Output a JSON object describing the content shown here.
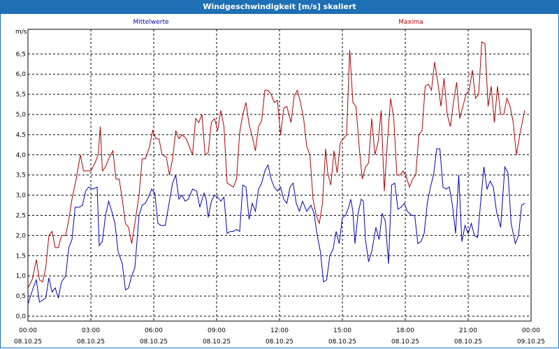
{
  "window": {
    "title": "Windgeschwindigkeit [m/s] skaliert"
  },
  "colors": {
    "mean": "#0000bb",
    "max": "#b00000",
    "titlebar": "#1e6fb4"
  },
  "chart_data": {
    "type": "line",
    "title": "Windgeschwindigkeit [m/s] skaliert",
    "ylabel": "m/s",
    "ylim": [
      0,
      7
    ],
    "yticks": [
      "0,0",
      "0,5",
      "1,0",
      "1,5",
      "2,0",
      "2,5",
      "3,0",
      "3,5",
      "4,0",
      "4,5",
      "5,0",
      "5,5",
      "6,0",
      "6,5"
    ],
    "xlim_hours": [
      0,
      24
    ],
    "xticks": [
      {
        "time": "00:00",
        "date": "08.10.25"
      },
      {
        "time": "03:00",
        "date": "08.10.25"
      },
      {
        "time": "06:00",
        "date": "08.10.25"
      },
      {
        "time": "09:00",
        "date": "08.10.25"
      },
      {
        "time": "12:00",
        "date": "08.10.25"
      },
      {
        "time": "15:00",
        "date": "08.10.25"
      },
      {
        "time": "18:00",
        "date": "08.10.25"
      },
      {
        "time": "21:00",
        "date": "08.10.25"
      },
      {
        "time": "00:00",
        "date": "09.10.25"
      }
    ],
    "series": [
      {
        "name": "Mittelwerte",
        "points": [
          [
            0,
            0.3
          ],
          [
            0.25,
            0.7
          ],
          [
            0.4,
            0.9
          ],
          [
            0.55,
            0.35
          ],
          [
            0.85,
            0.45
          ],
          [
            1,
            0.95
          ],
          [
            1.15,
            0.6
          ],
          [
            1.3,
            0.7
          ],
          [
            1.45,
            0.45
          ],
          [
            1.6,
            0.85
          ],
          [
            1.8,
            1.0
          ],
          [
            1.95,
            1.7
          ],
          [
            2.1,
            1.9
          ],
          [
            2.25,
            2.7
          ],
          [
            2.45,
            2.7
          ],
          [
            2.6,
            2.75
          ],
          [
            2.75,
            3.1
          ],
          [
            2.9,
            3.2
          ],
          [
            3.1,
            3.15
          ],
          [
            3.3,
            3.2
          ],
          [
            3.4,
            1.75
          ],
          [
            3.55,
            1.85
          ],
          [
            3.7,
            2.5
          ],
          [
            3.85,
            2.85
          ],
          [
            4.0,
            2.6
          ],
          [
            4.15,
            2.3
          ],
          [
            4.3,
            1.6
          ],
          [
            4.5,
            1.3
          ],
          [
            4.65,
            0.65
          ],
          [
            4.8,
            0.7
          ],
          [
            4.95,
            1.0
          ],
          [
            5.1,
            1.2
          ],
          [
            5.3,
            2.5
          ],
          [
            5.45,
            2.75
          ],
          [
            5.6,
            2.8
          ],
          [
            5.75,
            2.95
          ],
          [
            5.9,
            3.15
          ],
          [
            6.05,
            3.05
          ],
          [
            6.2,
            2.3
          ],
          [
            6.35,
            2.25
          ],
          [
            6.55,
            2.25
          ],
          [
            6.75,
            2.85
          ],
          [
            6.9,
            3.3
          ],
          [
            7.05,
            3.5
          ],
          [
            7.2,
            2.9
          ],
          [
            7.35,
            3.0
          ],
          [
            7.5,
            2.85
          ],
          [
            7.65,
            2.9
          ],
          [
            7.85,
            3.15
          ],
          [
            8.05,
            3.1
          ],
          [
            8.2,
            2.7
          ],
          [
            8.4,
            3.05
          ],
          [
            8.5,
            2.9
          ],
          [
            8.6,
            2.45
          ],
          [
            8.75,
            2.85
          ],
          [
            8.9,
            3.0
          ],
          [
            9.05,
            2.95
          ],
          [
            9.2,
            2.85
          ],
          [
            9.35,
            2.95
          ],
          [
            9.5,
            2.05
          ],
          [
            9.65,
            2.1
          ],
          [
            9.8,
            2.1
          ],
          [
            9.95,
            2.15
          ],
          [
            10.1,
            2.1
          ],
          [
            10.25,
            3.25
          ],
          [
            10.4,
            3.2
          ],
          [
            10.55,
            2.4
          ],
          [
            10.7,
            2.8
          ],
          [
            10.85,
            2.6
          ],
          [
            11.0,
            3.15
          ],
          [
            11.15,
            3.3
          ],
          [
            11.3,
            3.6
          ],
          [
            11.45,
            3.75
          ],
          [
            11.6,
            3.4
          ],
          [
            11.75,
            3.2
          ],
          [
            11.9,
            3.1
          ],
          [
            12.05,
            3.2
          ],
          [
            12.2,
            2.9
          ],
          [
            12.35,
            2.8
          ],
          [
            12.5,
            3.2
          ],
          [
            12.65,
            3.3
          ],
          [
            12.8,
            2.8
          ],
          [
            12.95,
            2.6
          ],
          [
            13.1,
            2.85
          ],
          [
            13.3,
            2.6
          ],
          [
            13.5,
            2.75
          ],
          [
            13.65,
            2.55
          ],
          [
            13.8,
            2.0
          ],
          [
            13.95,
            1.6
          ],
          [
            14.1,
            0.85
          ],
          [
            14.25,
            0.9
          ],
          [
            14.4,
            1.5
          ],
          [
            14.55,
            1.65
          ],
          [
            14.7,
            2.1
          ],
          [
            14.85,
            1.8
          ],
          [
            15.0,
            2.45
          ],
          [
            15.15,
            2.5
          ],
          [
            15.3,
            2.7
          ],
          [
            15.4,
            2.9
          ],
          [
            15.5,
            2.6
          ],
          [
            15.6,
            1.8
          ],
          [
            15.75,
            2.55
          ],
          [
            15.9,
            2.9
          ],
          [
            16.0,
            2.85
          ],
          [
            16.1,
            1.9
          ],
          [
            16.25,
            1.35
          ],
          [
            16.4,
            1.6
          ],
          [
            16.6,
            2.2
          ],
          [
            16.75,
            1.9
          ],
          [
            16.9,
            2.55
          ],
          [
            17.05,
            2.35
          ],
          [
            17.2,
            1.3
          ],
          [
            17.35,
            3.25
          ],
          [
            17.5,
            3.3
          ],
          [
            17.65,
            2.65
          ],
          [
            17.8,
            2.7
          ],
          [
            17.95,
            2.8
          ],
          [
            18.1,
            2.6
          ],
          [
            18.3,
            2.5
          ],
          [
            18.45,
            2.5
          ],
          [
            18.6,
            1.8
          ],
          [
            18.75,
            1.85
          ],
          [
            18.9,
            2.05
          ],
          [
            19.05,
            2.8
          ],
          [
            19.2,
            3.2
          ],
          [
            19.35,
            3.5
          ],
          [
            19.5,
            4.15
          ],
          [
            19.65,
            4.15
          ],
          [
            19.8,
            3.2
          ],
          [
            19.95,
            3.15
          ],
          [
            20.1,
            3.2
          ],
          [
            20.25,
            2.75
          ],
          [
            20.4,
            2.05
          ],
          [
            20.55,
            3.5
          ],
          [
            20.7,
            1.85
          ],
          [
            20.85,
            2.25
          ],
          [
            21.0,
            2.05
          ],
          [
            21.15,
            2.3
          ],
          [
            21.3,
            2.0
          ],
          [
            21.45,
            1.95
          ],
          [
            21.6,
            2.85
          ],
          [
            21.75,
            3.7
          ],
          [
            21.9,
            3.15
          ],
          [
            22.05,
            3.35
          ],
          [
            22.2,
            3.2
          ],
          [
            22.35,
            2.6
          ],
          [
            22.55,
            2.2
          ],
          [
            22.75,
            3.7
          ],
          [
            22.9,
            3.55
          ],
          [
            23.05,
            2.3
          ],
          [
            23.25,
            1.8
          ],
          [
            23.4,
            2.0
          ],
          [
            23.55,
            2.75
          ],
          [
            23.7,
            2.8
          ]
        ]
      },
      {
        "name": "Maxima",
        "points": [
          [
            0,
            0.7
          ],
          [
            0.2,
            0.9
          ],
          [
            0.4,
            1.4
          ],
          [
            0.55,
            0.9
          ],
          [
            0.7,
            0.85
          ],
          [
            0.85,
            1.2
          ],
          [
            1.0,
            2.0
          ],
          [
            1.15,
            2.1
          ],
          [
            1.3,
            1.7
          ],
          [
            1.45,
            1.7
          ],
          [
            1.6,
            2.0
          ],
          [
            1.8,
            2.0
          ],
          [
            1.95,
            2.4
          ],
          [
            2.1,
            2.9
          ],
          [
            2.3,
            3.4
          ],
          [
            2.5,
            4.0
          ],
          [
            2.65,
            3.6
          ],
          [
            2.8,
            3.6
          ],
          [
            3.0,
            3.6
          ],
          [
            3.2,
            3.8
          ],
          [
            3.35,
            4.0
          ],
          [
            3.45,
            4.7
          ],
          [
            3.55,
            3.6
          ],
          [
            3.7,
            3.7
          ],
          [
            3.85,
            3.9
          ],
          [
            4.05,
            4.1
          ],
          [
            4.2,
            3.4
          ],
          [
            4.35,
            3.4
          ],
          [
            4.5,
            2.9
          ],
          [
            4.65,
            2.3
          ],
          [
            4.8,
            2.2
          ],
          [
            4.95,
            1.8
          ],
          [
            5.1,
            2.3
          ],
          [
            5.3,
            3.0
          ],
          [
            5.45,
            3.9
          ],
          [
            5.6,
            3.9
          ],
          [
            5.8,
            4.2
          ],
          [
            5.95,
            4.6
          ],
          [
            6.1,
            4.4
          ],
          [
            6.25,
            4.4
          ],
          [
            6.4,
            4.0
          ],
          [
            6.6,
            3.95
          ],
          [
            6.75,
            3.5
          ],
          [
            6.9,
            3.9
          ],
          [
            7.05,
            4.6
          ],
          [
            7.2,
            4.4
          ],
          [
            7.35,
            4.5
          ],
          [
            7.55,
            4.4
          ],
          [
            7.7,
            4.2
          ],
          [
            7.85,
            4.0
          ],
          [
            8.0,
            4.9
          ],
          [
            8.15,
            4.8
          ],
          [
            8.3,
            5.0
          ],
          [
            8.45,
            4.0
          ],
          [
            8.6,
            4.05
          ],
          [
            8.75,
            4.8
          ],
          [
            8.9,
            4.9
          ],
          [
            9.05,
            4.6
          ],
          [
            9.2,
            5.1
          ],
          [
            9.35,
            4.7
          ],
          [
            9.5,
            3.3
          ],
          [
            9.65,
            3.25
          ],
          [
            9.8,
            3.2
          ],
          [
            9.95,
            3.4
          ],
          [
            10.1,
            4.55
          ],
          [
            10.25,
            5.0
          ],
          [
            10.4,
            5.3
          ],
          [
            10.55,
            4.75
          ],
          [
            10.7,
            4.45
          ],
          [
            10.85,
            4.1
          ],
          [
            11.0,
            4.7
          ],
          [
            11.15,
            4.85
          ],
          [
            11.3,
            5.6
          ],
          [
            11.45,
            5.6
          ],
          [
            11.6,
            5.5
          ],
          [
            11.75,
            5.3
          ],
          [
            11.9,
            5.35
          ],
          [
            12.05,
            4.5
          ],
          [
            12.2,
            5.15
          ],
          [
            12.35,
            5.2
          ],
          [
            12.55,
            4.8
          ],
          [
            12.7,
            5.45
          ],
          [
            12.85,
            5.6
          ],
          [
            13.0,
            5.3
          ],
          [
            13.15,
            4.9
          ],
          [
            13.3,
            4.2
          ],
          [
            13.45,
            4.0
          ],
          [
            13.6,
            2.9
          ],
          [
            13.75,
            2.5
          ],
          [
            13.9,
            2.3
          ],
          [
            14.05,
            2.8
          ],
          [
            14.2,
            4.15
          ],
          [
            14.3,
            3.55
          ],
          [
            14.45,
            3.25
          ],
          [
            14.6,
            4.1
          ],
          [
            14.75,
            3.55
          ],
          [
            14.9,
            4.3
          ],
          [
            15.05,
            4.4
          ],
          [
            15.2,
            4.5
          ],
          [
            15.35,
            6.6
          ],
          [
            15.5,
            5.3
          ],
          [
            15.65,
            5.2
          ],
          [
            15.8,
            4.2
          ],
          [
            15.95,
            3.4
          ],
          [
            16.1,
            3.7
          ],
          [
            16.25,
            3.8
          ],
          [
            16.4,
            4.9
          ],
          [
            16.55,
            4.0
          ],
          [
            16.7,
            4.3
          ],
          [
            16.85,
            5.1
          ],
          [
            17.0,
            3.1
          ],
          [
            17.15,
            4.35
          ],
          [
            17.3,
            5.4
          ],
          [
            17.45,
            4.9
          ],
          [
            17.6,
            3.5
          ],
          [
            17.75,
            3.5
          ],
          [
            17.9,
            3.6
          ],
          [
            18.05,
            3.45
          ],
          [
            18.2,
            3.2
          ],
          [
            18.35,
            3.4
          ],
          [
            18.5,
            3.5
          ],
          [
            18.65,
            4.5
          ],
          [
            18.8,
            4.6
          ],
          [
            18.95,
            5.7
          ],
          [
            19.1,
            5.75
          ],
          [
            19.25,
            5.6
          ],
          [
            19.4,
            6.3
          ],
          [
            19.55,
            5.8
          ],
          [
            19.7,
            5.2
          ],
          [
            19.85,
            5.9
          ],
          [
            20.0,
            5.0
          ],
          [
            20.15,
            4.7
          ],
          [
            20.3,
            5.3
          ],
          [
            20.45,
            5.8
          ],
          [
            20.6,
            4.9
          ],
          [
            20.75,
            5.2
          ],
          [
            20.9,
            5.5
          ],
          [
            21.05,
            5.6
          ],
          [
            21.2,
            6.1
          ],
          [
            21.35,
            5.4
          ],
          [
            21.5,
            5.5
          ],
          [
            21.65,
            6.8
          ],
          [
            21.8,
            6.75
          ],
          [
            21.95,
            5.2
          ],
          [
            22.1,
            5.7
          ],
          [
            22.25,
            4.8
          ],
          [
            22.4,
            5.7
          ],
          [
            22.55,
            5.0
          ],
          [
            22.7,
            5.0
          ],
          [
            22.85,
            5.4
          ],
          [
            23.0,
            5.2
          ],
          [
            23.15,
            4.8
          ],
          [
            23.3,
            4.0
          ],
          [
            23.5,
            4.6
          ],
          [
            23.7,
            5.1
          ]
        ]
      }
    ]
  }
}
